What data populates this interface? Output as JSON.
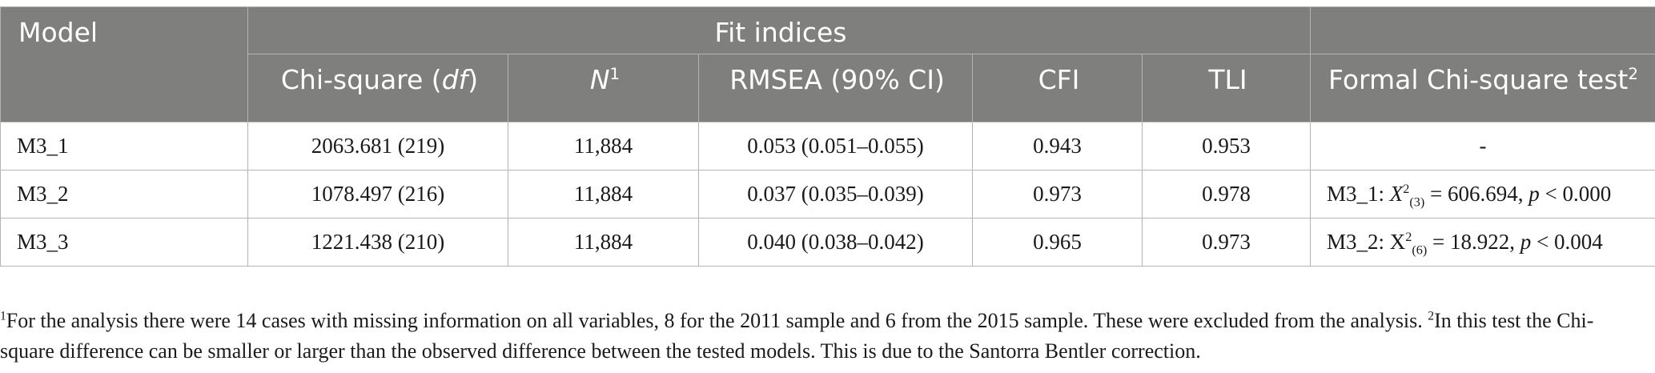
{
  "header": {
    "model": "Model",
    "fit_indices": "Fit indices",
    "chi_square_prefix": "Chi-square (",
    "chi_square_df": "df",
    "chi_square_suffix": ")",
    "n": "N",
    "n_sup": "1",
    "rmsea": "RMSEA (90% CI)",
    "cfi": "CFI",
    "tli": "TLI",
    "formal_test": "Formal Chi-square test",
    "formal_test_sup": "2"
  },
  "rows": [
    {
      "model": "M3_1",
      "chi_square": "2063.681 (219)",
      "n": "11,884",
      "rmsea": "0.053 (0.051–0.055)",
      "cfi": "0.943",
      "tli": "0.953",
      "test": {
        "plain": "-",
        "ref": "",
        "sym": "",
        "sub": "",
        "val": "",
        "p": "",
        "pval": ""
      }
    },
    {
      "model": "M3_2",
      "chi_square": "1078.497 (216)",
      "n": "11,884",
      "rmsea": "0.037 (0.035–0.039)",
      "cfi": "0.973",
      "tli": "0.978",
      "test": {
        "plain": "",
        "ref": "M3_1: ",
        "sym": "X",
        "sub": "(3)",
        "val": " = 606.694, ",
        "p": "p",
        "pval": " < 0.000"
      }
    },
    {
      "model": "M3_3",
      "chi_square": "1221.438 (210)",
      "n": "11,884",
      "rmsea": "0.040 (0.038–0.042)",
      "cfi": "0.965",
      "tli": "0.973",
      "test": {
        "plain": "",
        "ref": "M3_2: ",
        "sym": "X",
        "sub": "(6)",
        "val": " = 18.922, ",
        "p": "p",
        "pval": " < 0.004"
      }
    }
  ],
  "footnote": {
    "sup1": "1",
    "text1": "For the analysis there were 14 cases with missing information on all variables, 8 for the 2011 sample and 6 from the 2015 sample. These were excluded from the analysis. ",
    "sup2": "2",
    "text2": "In this test the Chi-square difference can be smaller or larger than the observed difference between the tested models. This is due to the Santorra Bentler correction."
  }
}
